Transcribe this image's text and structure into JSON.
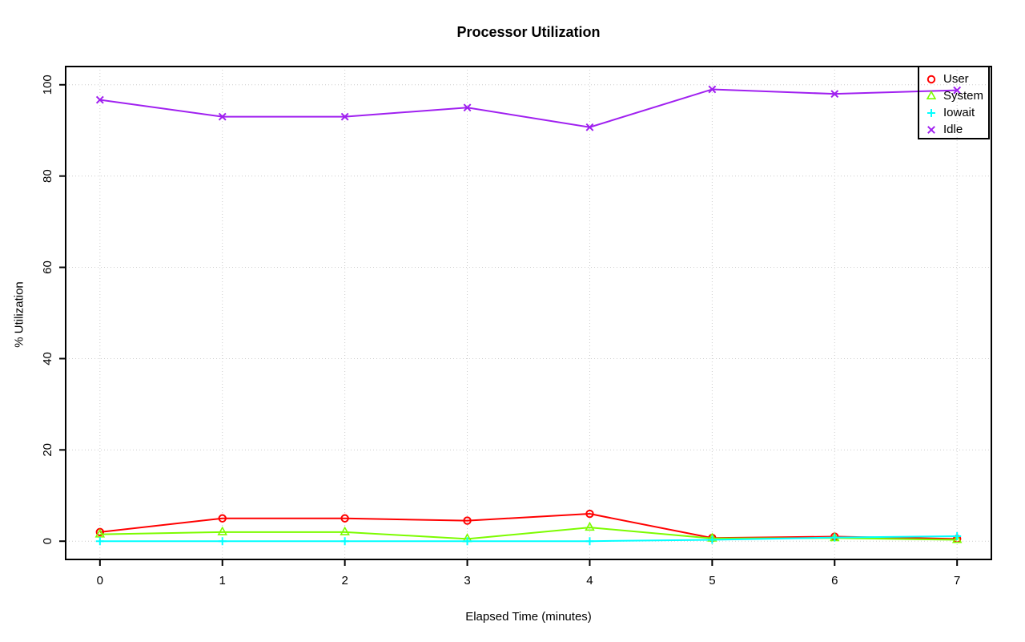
{
  "chart_data": {
    "type": "line",
    "title": "Processor Utilization",
    "xlabel": "Elapsed Time (minutes)",
    "ylabel": "% Utilization",
    "x": [
      0,
      1,
      2,
      3,
      4,
      5,
      6,
      7
    ],
    "xlim": [
      0,
      7
    ],
    "ylim": [
      0,
      100
    ],
    "xticks": [
      0,
      1,
      2,
      3,
      4,
      5,
      6,
      7
    ],
    "yticks": [
      0,
      20,
      40,
      60,
      80,
      100
    ],
    "grid": true,
    "grid_color": "#CCCCCC",
    "axis_color": "#000000",
    "legend_position": "top-right",
    "series": [
      {
        "name": "User",
        "color": "#FF0000",
        "marker": "circle",
        "values": [
          2.0,
          5.0,
          5.0,
          4.5,
          6.0,
          0.7,
          1.0,
          0.5
        ]
      },
      {
        "name": "System",
        "color": "#7CFC00",
        "marker": "triangle",
        "values": [
          1.5,
          2.0,
          2.0,
          0.5,
          3.0,
          0.6,
          0.7,
          0.3
        ]
      },
      {
        "name": "Iowait",
        "color": "#00FFFF",
        "marker": "plus",
        "values": [
          0.0,
          0.0,
          0.0,
          0.0,
          0.0,
          0.3,
          0.8,
          1.1
        ]
      },
      {
        "name": "Idle",
        "color": "#A020F0",
        "marker": "x",
        "values": [
          96.7,
          93.0,
          93.0,
          95.0,
          90.7,
          99.0,
          98.0,
          98.8
        ]
      }
    ]
  }
}
